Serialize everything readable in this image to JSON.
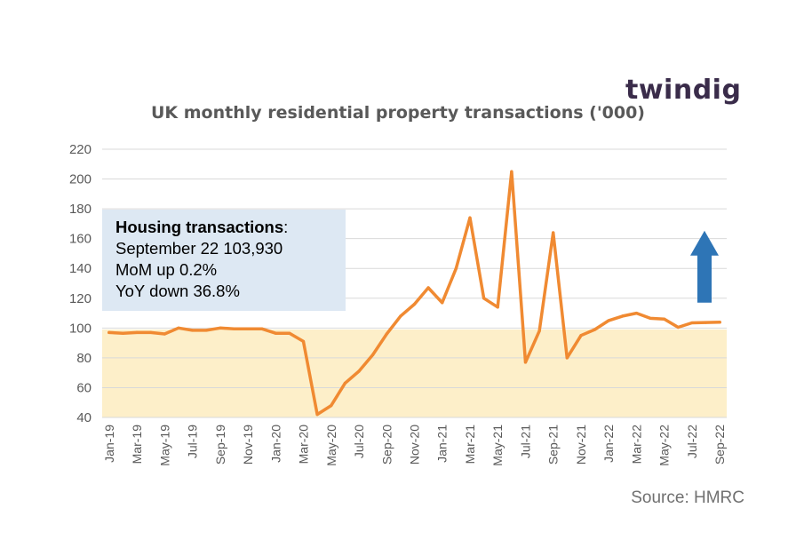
{
  "brand": {
    "logo_text": "twindig",
    "logo_color": "#3a2c4a",
    "logo_dot_color": "#f07c2a"
  },
  "info_box": {
    "heading": "Housing transactions",
    "heading_suffix": ":",
    "lines": [
      "September 22 103,930",
      "MoM up 0.2%",
      "YoY down 36.8%"
    ],
    "background": "#dde8f3"
  },
  "source_text": "Source: HMRC",
  "colors": {
    "line": "#f08a32",
    "band": "#fdefc9",
    "arrow": "#2e75b6",
    "grid": "#d9d9d9",
    "axis_text": "#595959"
  },
  "chart_data": {
    "type": "line",
    "title": "UK monthly residential property transactions ('000)",
    "xlabel": "",
    "ylabel": "",
    "ylim": [
      40,
      220
    ],
    "yticks": [
      40,
      60,
      80,
      100,
      120,
      140,
      160,
      180,
      200,
      220
    ],
    "grid": true,
    "legend": "none",
    "band": {
      "from": 40,
      "to": 99
    },
    "arrow": {
      "direction": "up",
      "from": 117,
      "to": 157
    },
    "x": [
      "Jan-19",
      "Feb-19",
      "Mar-19",
      "Apr-19",
      "May-19",
      "Jun-19",
      "Jul-19",
      "Aug-19",
      "Sep-19",
      "Oct-19",
      "Nov-19",
      "Dec-19",
      "Jan-20",
      "Feb-20",
      "Mar-20",
      "Apr-20",
      "May-20",
      "Jun-20",
      "Jul-20",
      "Aug-20",
      "Sep-20",
      "Oct-20",
      "Nov-20",
      "Dec-20",
      "Jan-21",
      "Feb-21",
      "Mar-21",
      "Apr-21",
      "May-21",
      "Jun-21",
      "Jul-21",
      "Aug-21",
      "Sep-21",
      "Oct-21",
      "Nov-21",
      "Dec-21",
      "Jan-22",
      "Feb-22",
      "Mar-22",
      "Apr-22",
      "May-22",
      "Jun-22",
      "Jul-22",
      "Aug-22",
      "Sep-22"
    ],
    "x_tick_labels": [
      "Jan-19",
      "Mar-19",
      "May-19",
      "Jul-19",
      "Sep-19",
      "Nov-19",
      "Jan-20",
      "Mar-20",
      "May-20",
      "Jul-20",
      "Sep-20",
      "Nov-20",
      "Jan-21",
      "Mar-21",
      "May-21",
      "Jul-21",
      "Sep-21",
      "Nov-21",
      "Jan-22",
      "Mar-22",
      "May-22",
      "Jul-22",
      "Sep-22"
    ],
    "series": [
      {
        "values": [
          97,
          96.5,
          97,
          97,
          96,
          100,
          98.5,
          98.5,
          100,
          99.5,
          99.5,
          99.5,
          96.5,
          96.5,
          91,
          42,
          48,
          63,
          71,
          82,
          96,
          108,
          116,
          127,
          117,
          140,
          174,
          120,
          114,
          205,
          77,
          98,
          164,
          80,
          95,
          99,
          105,
          108,
          110,
          106.5,
          106,
          100.5,
          103.5,
          103.7,
          103.9
        ]
      }
    ]
  }
}
